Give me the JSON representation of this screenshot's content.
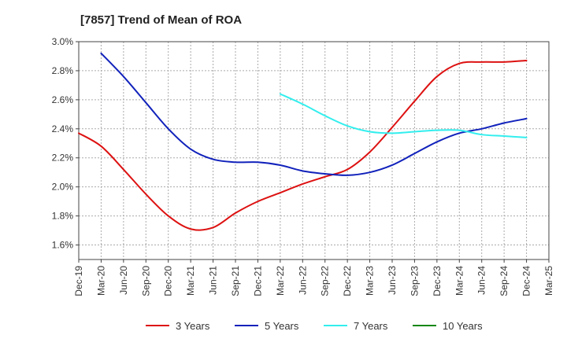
{
  "chart_data": {
    "type": "line",
    "title": "[7857]  Trend of Mean of ROA",
    "xlabel": "",
    "ylabel": "",
    "ylim": [
      1.5,
      3.0
    ],
    "yticks": [
      1.6,
      1.8,
      2.0,
      2.2,
      2.4,
      2.6,
      2.8,
      3.0
    ],
    "ytick_labels": [
      "1.6%",
      "1.8%",
      "2.0%",
      "2.2%",
      "2.4%",
      "2.6%",
      "2.8%",
      "3.0%"
    ],
    "categories": [
      "Dec-19",
      "Mar-20",
      "Jun-20",
      "Sep-20",
      "Dec-20",
      "Mar-21",
      "Jun-21",
      "Sep-21",
      "Dec-21",
      "Mar-22",
      "Jun-22",
      "Sep-22",
      "Dec-22",
      "Mar-23",
      "Jun-23",
      "Sep-23",
      "Dec-23",
      "Mar-24",
      "Jun-24",
      "Sep-24",
      "Dec-24",
      "Mar-25"
    ],
    "grid": true,
    "grid_style": "dashed",
    "legend_position": "bottom",
    "series": [
      {
        "name": "3 Years",
        "color": "#dd1111",
        "values": [
          2.37,
          2.28,
          2.12,
          1.95,
          1.8,
          1.71,
          1.72,
          1.82,
          1.9,
          1.96,
          2.02,
          2.07,
          2.12,
          2.24,
          2.41,
          2.59,
          2.76,
          2.85,
          2.86,
          2.86,
          2.87,
          null
        ]
      },
      {
        "name": "5 Years",
        "color": "#1122bb",
        "values": [
          null,
          2.92,
          2.76,
          2.58,
          2.4,
          2.26,
          2.19,
          2.17,
          2.17,
          2.15,
          2.11,
          2.09,
          2.08,
          2.1,
          2.15,
          2.23,
          2.31,
          2.37,
          2.4,
          2.44,
          2.47,
          null
        ]
      },
      {
        "name": "7 Years",
        "color": "#33eeee",
        "values": [
          null,
          null,
          null,
          null,
          null,
          null,
          null,
          null,
          null,
          2.64,
          2.57,
          2.49,
          2.42,
          2.38,
          2.37,
          2.38,
          2.39,
          2.39,
          2.36,
          2.35,
          2.34,
          null
        ]
      },
      {
        "name": "10 Years",
        "color": "#118811",
        "values": [
          null,
          null,
          null,
          null,
          null,
          null,
          null,
          null,
          null,
          null,
          null,
          null,
          null,
          null,
          null,
          null,
          null,
          null,
          null,
          null,
          null,
          null
        ]
      }
    ]
  }
}
